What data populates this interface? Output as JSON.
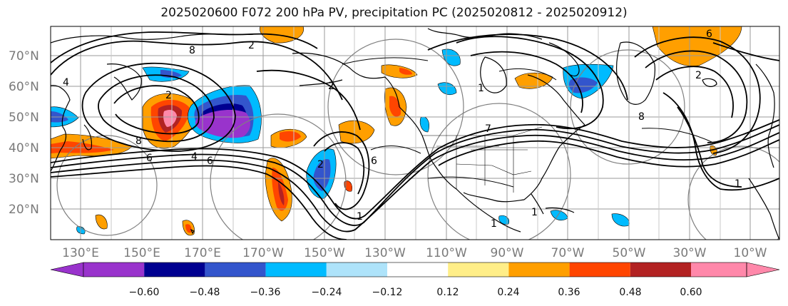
{
  "title": "2025020600 F072 200 hPa PV, precipitation PC (2025020812 - 2025020912)",
  "lat_labels": [
    "70°N",
    "60°N",
    "50°N",
    "40°N",
    "30°N",
    "20°N"
  ],
  "lon_labels": [
    "130°E",
    "150°E",
    "170°E",
    "170°W",
    "150°W",
    "130°W",
    "110°W",
    "90°W",
    "70°W",
    "50°W",
    "30°W",
    "10°W"
  ],
  "colorbar": {
    "ticks": [
      "−0.60",
      "−0.48",
      "−0.36",
      "−0.24",
      "−0.12",
      "0.12",
      "0.24",
      "0.36",
      "0.48",
      "0.60"
    ],
    "colors": {
      "under": "#9933cc",
      "c1": "#9933cc",
      "c2": "#000090",
      "c3": "#3355cc",
      "c4": "#00bbff",
      "c5": "#aee3fa",
      "c6": "#ffffff",
      "c7": "#ffee88",
      "c8": "#ff9f00",
      "c9": "#ff4500",
      "c10": "#b22222",
      "c11": "#ff88aa",
      "over": "#ff88aa"
    }
  },
  "pv_contour_labels": [
    "8",
    "2",
    "4",
    "8",
    "6",
    "4",
    "6",
    "2",
    "1",
    "1",
    "1",
    "6",
    "2",
    "8",
    "6",
    "7",
    "2",
    "1",
    "1",
    "2"
  ]
}
